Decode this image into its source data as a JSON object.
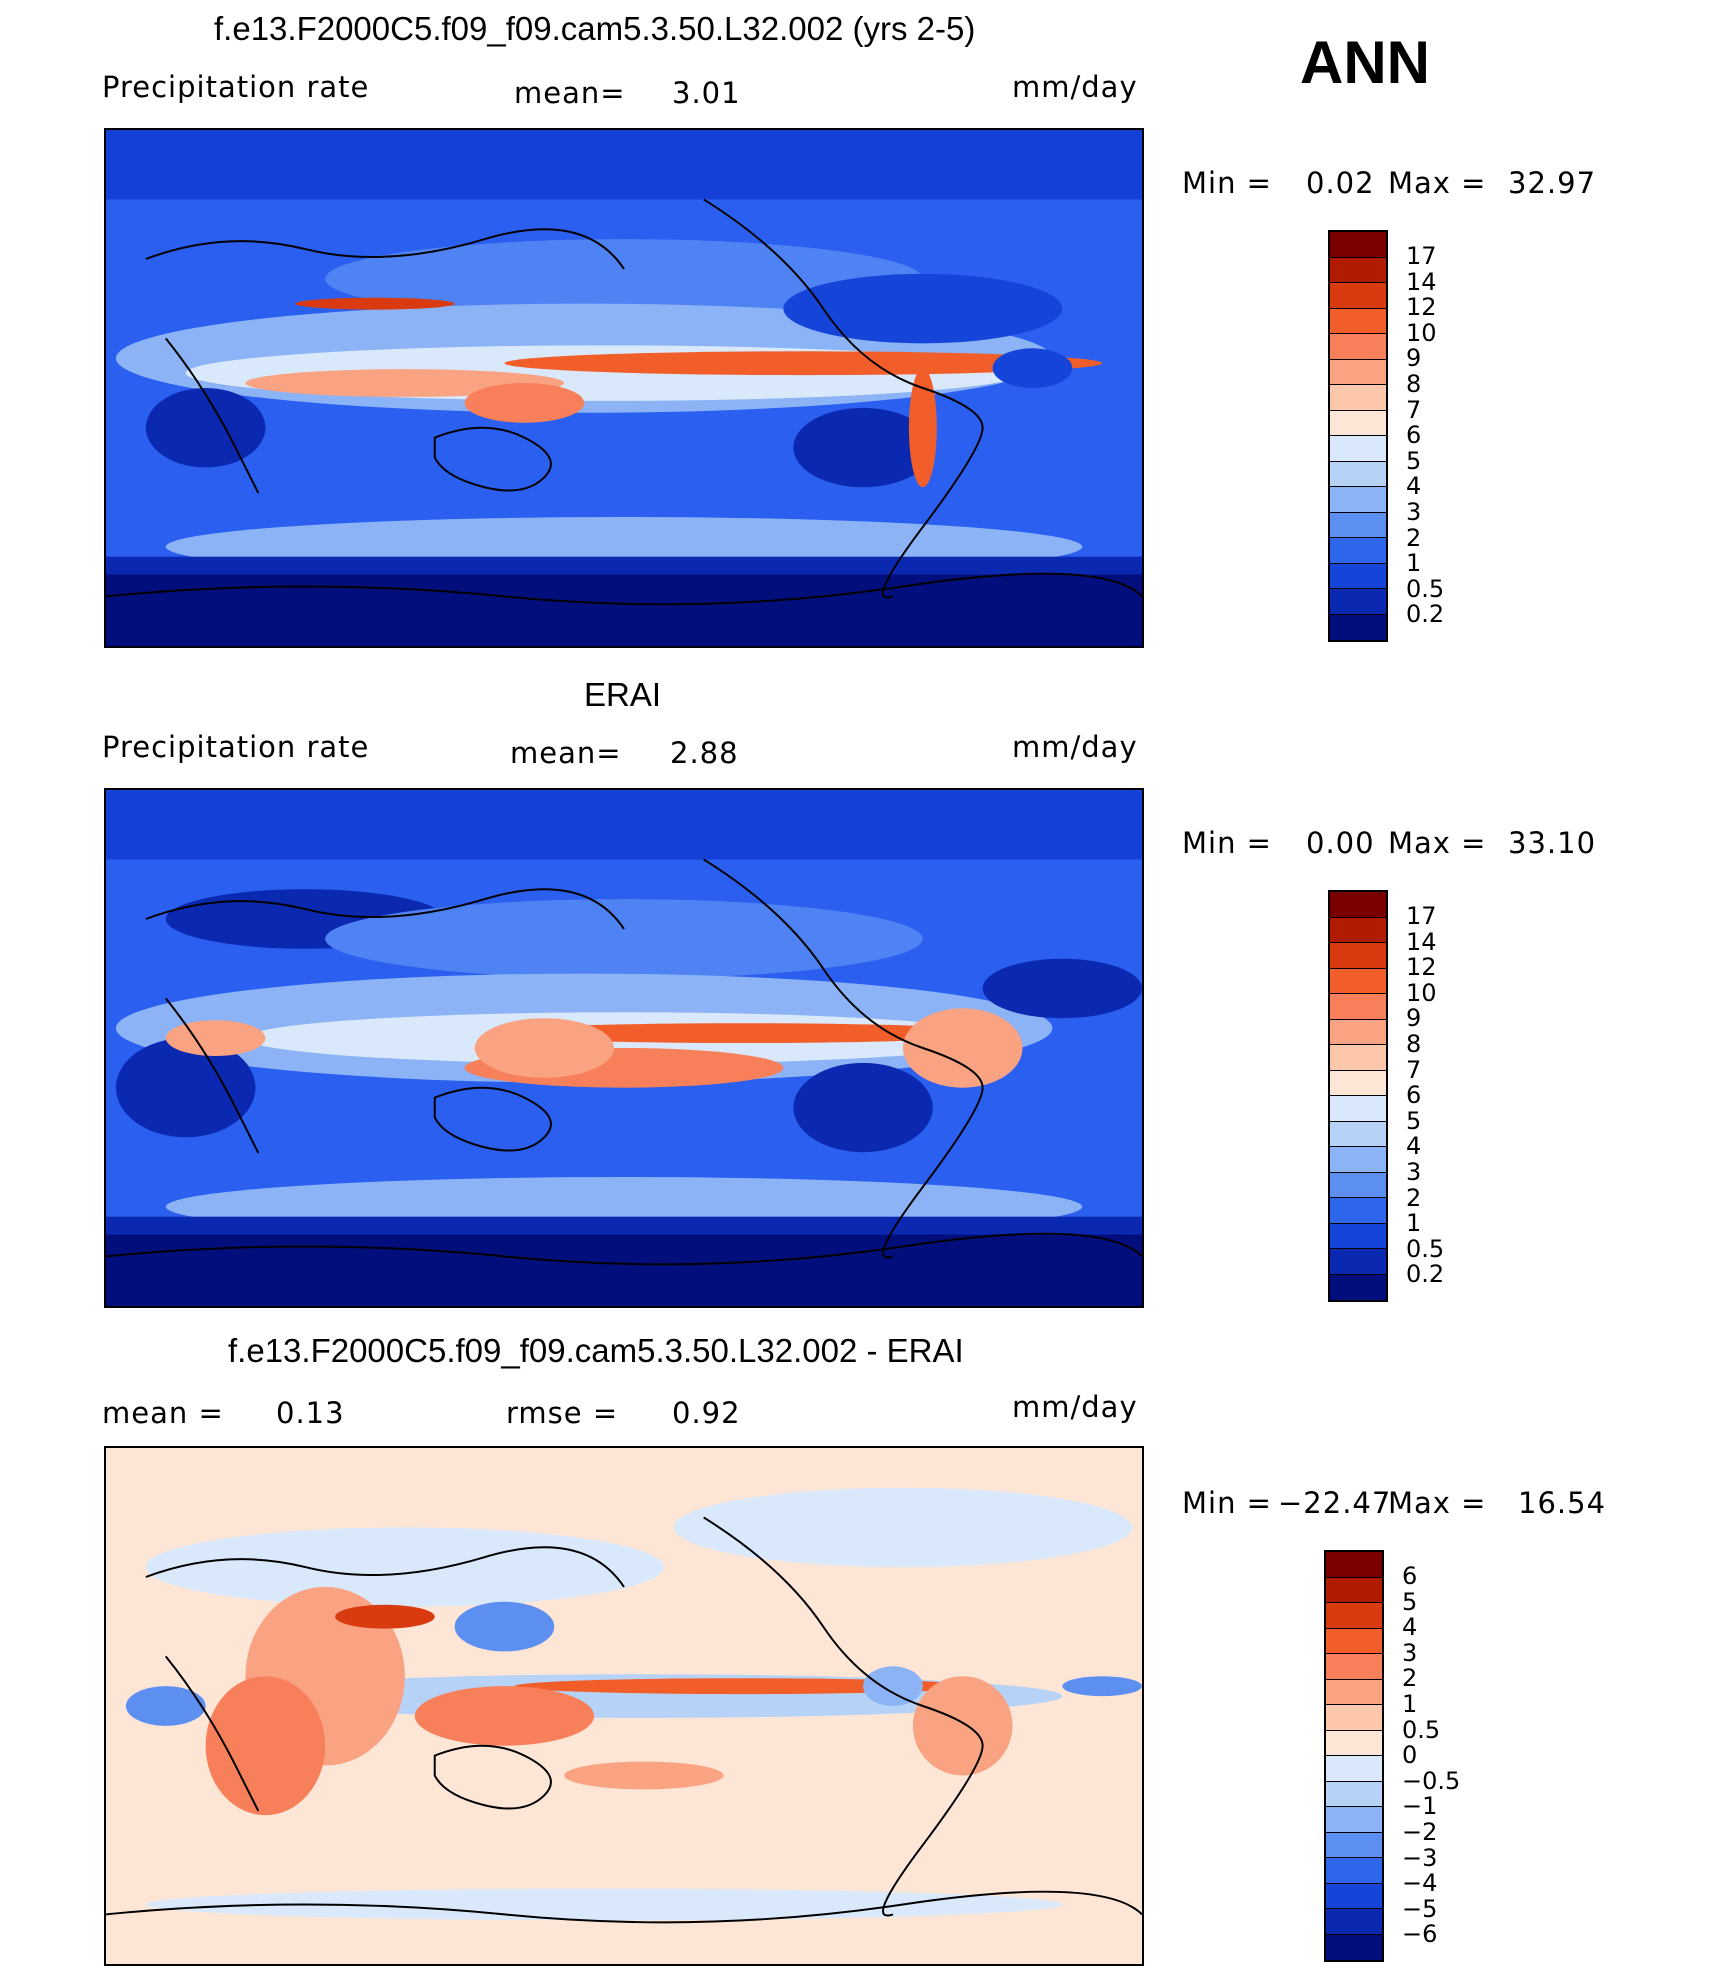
{
  "season": "ANN",
  "panels": [
    {
      "title": "f.e13.F2000C5.f09_f09.cam5.3.50.L32.002 (yrs 2-5)",
      "left_label": "Precipitation rate",
      "mean_label": "mean=",
      "mean_value": "3.01",
      "units": "mm/day",
      "min_label": "Min =",
      "min_value": "0.02",
      "max_label": "Max =",
      "max_value": "32.97",
      "colorbar_ticks": [
        "17",
        "14",
        "12",
        "10",
        "9",
        "8",
        "7",
        "6",
        "5",
        "4",
        "3",
        "2",
        "1",
        "0.5",
        "0.2"
      ]
    },
    {
      "title": "ERAI",
      "left_label": "Precipitation rate",
      "mean_label": "mean=",
      "mean_value": "2.88",
      "units": "mm/day",
      "min_label": "Min =",
      "min_value": "0.00",
      "max_label": "Max =",
      "max_value": "33.10",
      "colorbar_ticks": [
        "17",
        "14",
        "12",
        "10",
        "9",
        "8",
        "7",
        "6",
        "5",
        "4",
        "3",
        "2",
        "1",
        "0.5",
        "0.2"
      ]
    },
    {
      "title": "f.e13.F2000C5.f09_f09.cam5.3.50.L32.002 - ERAI",
      "mean_label": "mean =",
      "mean_value": "0.13",
      "rmse_label": "rmse =",
      "rmse_value": "0.92",
      "units": "mm/day",
      "min_label": "Min =",
      "min_value": "−22.47",
      "max_label": "Max =",
      "max_value": "16.54",
      "colorbar_ticks": [
        "6",
        "5",
        "4",
        "3",
        "2",
        "1",
        "0.5",
        "0",
        "−0.5",
        "−1",
        "−2",
        "−3",
        "−4",
        "−5",
        "−6"
      ]
    }
  ],
  "colors": {
    "precip_scale": [
      "#7a0000",
      "#b01c00",
      "#d93a10",
      "#f25e2a",
      "#f7805a",
      "#f9a383",
      "#fcc7aa",
      "#fde6d6",
      "#d9e8fb",
      "#b6d2f7",
      "#8cb3f5",
      "#5d8ff1",
      "#2f67ec",
      "#1544d9",
      "#0a28b0",
      "#030e7d"
    ],
    "diff_scale": [
      "#7a0000",
      "#b01c00",
      "#d93a10",
      "#f25e2a",
      "#f7805a",
      "#f9a383",
      "#fcc7aa",
      "#fde6d6",
      "#d9e8fb",
      "#b6d2f7",
      "#8cb3f5",
      "#5d8ff1",
      "#2f67ec",
      "#1544d9",
      "#0a28b0",
      "#030e7d"
    ]
  }
}
